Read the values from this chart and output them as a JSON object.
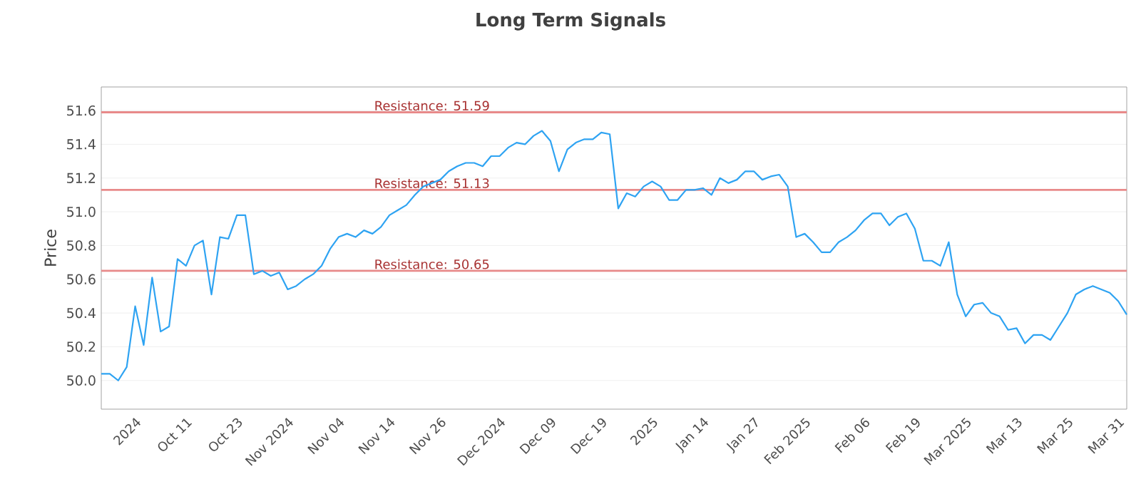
{
  "chart_data": {
    "type": "line",
    "title": "Long Term Signals",
    "ylabel": "Price",
    "categories": [
      null,
      null,
      null,
      null,
      "2024",
      null,
      null,
      null,
      null,
      null,
      "Oct 11",
      null,
      null,
      null,
      null,
      null,
      "Oct 23",
      null,
      null,
      null,
      null,
      null,
      "Nov 2024",
      null,
      null,
      null,
      null,
      null,
      "Nov 04",
      null,
      null,
      null,
      null,
      null,
      "Nov 14",
      null,
      null,
      null,
      null,
      null,
      "Nov 26",
      null,
      null,
      null,
      null,
      null,
      null,
      "Dec 2024",
      null,
      null,
      null,
      null,
      null,
      "Dec 09",
      null,
      null,
      null,
      null,
      null,
      "Dec 19",
      null,
      null,
      null,
      null,
      null,
      "2025",
      null,
      null,
      null,
      null,
      null,
      "Jan 14",
      null,
      null,
      null,
      null,
      null,
      "Jan 27",
      null,
      null,
      null,
      null,
      null,
      "Feb 2025",
      null,
      null,
      null,
      null,
      null,
      null,
      "Feb 06",
      null,
      null,
      null,
      null,
      null,
      "Feb 19",
      null,
      null,
      null,
      null,
      null,
      "Mar 2025",
      null,
      null,
      null,
      null,
      null,
      "Mar 13",
      null,
      null,
      null,
      null,
      null,
      "Mar 25",
      null,
      null,
      null,
      null,
      null,
      "Mar 31",
      null
    ],
    "series": [
      {
        "color": "#2ea3f2",
        "values": [
          50.04,
          50.04,
          50.0,
          50.08,
          50.44,
          50.21,
          50.61,
          50.29,
          50.32,
          50.72,
          50.68,
          50.8,
          50.83,
          50.51,
          50.85,
          50.84,
          50.98,
          50.98,
          50.63,
          50.65,
          50.62,
          50.64,
          50.54,
          50.56,
          50.6,
          50.63,
          50.68,
          50.78,
          50.85,
          50.87,
          50.85,
          50.89,
          50.87,
          50.91,
          50.98,
          51.01,
          51.04,
          51.1,
          51.15,
          51.17,
          51.19,
          51.24,
          51.27,
          51.29,
          51.29,
          51.27,
          51.33,
          51.33,
          51.38,
          51.41,
          51.4,
          51.45,
          51.48,
          51.42,
          51.24,
          51.37,
          51.41,
          51.43,
          51.43,
          51.47,
          51.46,
          51.02,
          51.11,
          51.09,
          51.15,
          51.18,
          51.15,
          51.07,
          51.07,
          51.13,
          51.13,
          51.14,
          51.1,
          51.2,
          51.17,
          51.19,
          51.24,
          51.24,
          51.19,
          51.21,
          51.22,
          51.15,
          50.85,
          50.87,
          50.82,
          50.76,
          50.76,
          50.82,
          50.85,
          50.89,
          50.95,
          50.99,
          50.99,
          50.92,
          50.97,
          50.99,
          50.9,
          50.71,
          50.71,
          50.68,
          50.82,
          50.51,
          50.38,
          50.45,
          50.46,
          50.4,
          50.38,
          50.3,
          50.31,
          50.22,
          50.27,
          50.27,
          50.24,
          50.32,
          50.4,
          50.51,
          50.54,
          50.56,
          50.54,
          50.52,
          50.47,
          50.39
        ]
      }
    ],
    "ylim": [
      49.83,
      51.74
    ],
    "yticks": [
      {
        "value": 50.0,
        "label": "50.0"
      },
      50.2,
      50.4,
      50.6,
      50.8,
      {
        "value": 51.0,
        "label": "51.0"
      },
      51.2,
      51.4,
      51.6
    ],
    "grid": "y",
    "ref_lines": [
      {
        "axis": "y",
        "value": 51.59,
        "label": "Resistance: 51.59",
        "color": "#e88a8a"
      },
      {
        "axis": "y",
        "value": 51.13,
        "label": "Resistance: 51.13",
        "color": "#e88a8a"
      },
      {
        "axis": "y",
        "value": 50.65,
        "label": "Resistance: 50.65",
        "color": "#e88a8a"
      }
    ]
  }
}
